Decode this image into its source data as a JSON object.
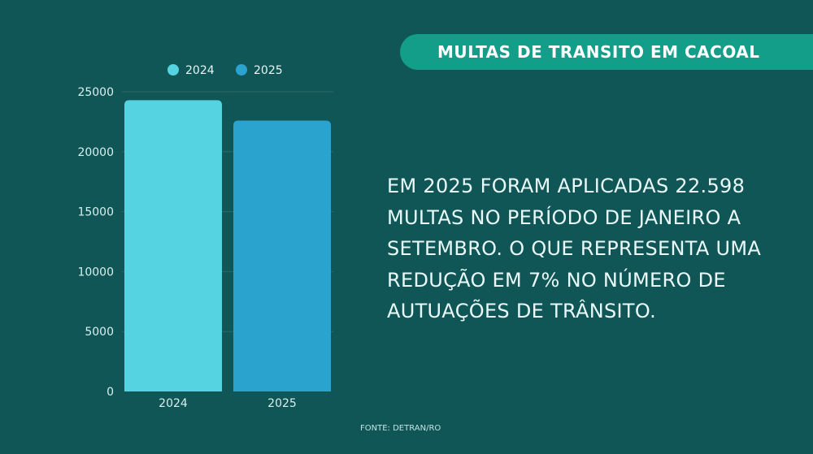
{
  "title": "MULTAS DE TRANSITO EM CACOAL",
  "description": "EM 2025 FORAM APLICADAS 22.598 MULTAS NO PERÍODO DE JANEIRO A SETEMBRO. O QUE REPRESENTA UMA REDUÇÃO EM 7% NO NÚMERO DE AUTUAÇÕES DE TRÂNSITO.",
  "source": "FONTE:  DETRAN/RO",
  "colors": {
    "background": "#115656",
    "banner": "#129e88",
    "series_2024": "#55d3e0",
    "series_2025": "#2aa3cf"
  },
  "chart_data": {
    "type": "bar",
    "categories": [
      "2024",
      "2025"
    ],
    "series": [
      {
        "name": "2024",
        "values": [
          24300,
          null
        ]
      },
      {
        "name": "2025",
        "values": [
          null,
          22598
        ]
      }
    ],
    "ylim": [
      0,
      25000
    ],
    "yticks": [
      "0",
      "5000",
      "10000",
      "15000",
      "20000",
      "25000"
    ],
    "grid": true,
    "legend": "top"
  }
}
